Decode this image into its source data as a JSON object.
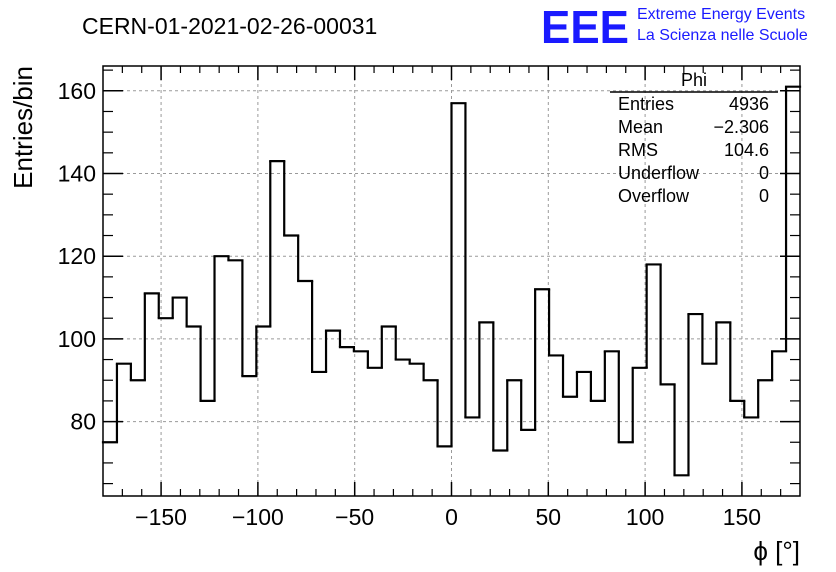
{
  "header": {
    "run_title": "CERN-01-2021-02-26-00031",
    "logo_text": "EEE",
    "project_line1": "Extreme Energy Events",
    "project_line2": "La Scienza nelle Scuole"
  },
  "colors": {
    "brand": "#1a1aff",
    "histogram": "#000000",
    "grid": "#9a9a9a"
  },
  "stats": {
    "name": "Phi",
    "rows": [
      {
        "label": "Entries",
        "value": "4936"
      },
      {
        "label": "Mean",
        "value": "−2.306"
      },
      {
        "label": "RMS",
        "value": "104.6"
      },
      {
        "label": "Underflow",
        "value": "0"
      },
      {
        "label": "Overflow",
        "value": "0"
      }
    ]
  },
  "chart_data": {
    "type": "bar",
    "style": "step-histogram",
    "xlabel": "ϕ [°]",
    "ylabel": "Entries/bin",
    "xlim": [
      -180,
      180
    ],
    "ylim": [
      62,
      166
    ],
    "grid": true,
    "bin_width": 7.2,
    "bin_low_edges": [
      -180,
      -172.8,
      -165.6,
      -158.4,
      -151.2,
      -144,
      -136.8,
      -129.6,
      -122.4,
      -115.2,
      -108,
      -100.8,
      -93.6,
      -86.4,
      -79.2,
      -72,
      -64.8,
      -57.6,
      -50.4,
      -43.2,
      -36,
      -28.8,
      -21.6,
      -14.4,
      -7.2,
      0,
      7.2,
      14.4,
      21.6,
      28.8,
      36,
      43.2,
      50.4,
      57.6,
      64.8,
      72,
      79.2,
      86.4,
      93.6,
      100.8,
      108,
      115.2,
      122.4,
      129.6,
      136.8,
      144,
      151.2,
      158.4,
      165.6,
      172.8
    ],
    "values": [
      75,
      94,
      90,
      111,
      105,
      110,
      103,
      85,
      120,
      119,
      91,
      103,
      143,
      125,
      114,
      92,
      102,
      98,
      97,
      93,
      103,
      95,
      94,
      90,
      74,
      157,
      81,
      104,
      73,
      90,
      78,
      112,
      96,
      86,
      92,
      85,
      97,
      75,
      93,
      118,
      89,
      67,
      106,
      94,
      104,
      85,
      81,
      90,
      97,
      161
    ],
    "x_ticks": [
      -150,
      -100,
      -50,
      0,
      50,
      100,
      150
    ],
    "x_tick_labels": [
      "−150",
      "−100",
      "−50",
      "0",
      "50",
      "100",
      "150"
    ],
    "y_ticks": [
      80,
      100,
      120,
      140,
      160
    ],
    "y_tick_labels": [
      "80",
      "100",
      "120",
      "140",
      "160"
    ]
  }
}
